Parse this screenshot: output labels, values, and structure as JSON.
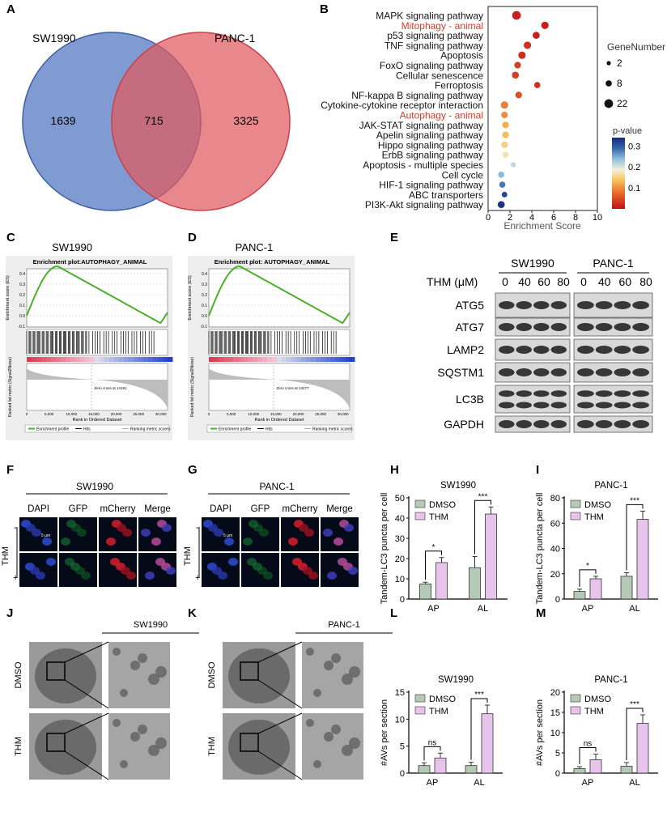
{
  "panels": {
    "A": "A",
    "B": "B",
    "C": "C",
    "D": "D",
    "E": "E",
    "F": "F",
    "G": "G",
    "H": "H",
    "I": "I",
    "J": "J",
    "K": "K",
    "L": "L",
    "M": "M"
  },
  "venn": {
    "left_label": "SW1990",
    "right_label": "PANC-1",
    "left_only": "1639",
    "overlap": "715",
    "right_only": "3325",
    "left_color": "#5b7fc4",
    "right_color": "#e05a60"
  },
  "gsea": [
    {
      "cell": "SW1990",
      "plot_title": "Enrichment plot:AUTOPHAGY_ANIMAL",
      "ylabel": "Enrichment score (ES)",
      "ylabel2": "Ranked list metric (Signal2Noise)",
      "xlabel": "Rank in Ordered Dataset",
      "yticks": [
        "0.4",
        "0.3",
        "0.2",
        "0.1",
        "0.0",
        "-0.1"
      ],
      "xticks": [
        "0",
        "5,000",
        "10,000",
        "15,000",
        "20,000",
        "25,000",
        "30,000"
      ],
      "zero_cross": "Zero cross at 14191",
      "legend": [
        "Enrichment profile",
        "Hits",
        "Ranking metric scores"
      ]
    },
    {
      "cell": "PANC-1",
      "plot_title": "Enrichment plot: AUTOPHAGY_ANIMAL",
      "ylabel": "Enrichment score (ES)",
      "ylabel2": "Ranked list metric (Signal2Noise)",
      "xlabel": "Rank in Ordered Dataset",
      "yticks": [
        "0.4",
        "0.3",
        "0.2",
        "0.1",
        "0.0",
        "-0.1"
      ],
      "xticks": [
        "0",
        "5,000",
        "10,000",
        "15,000",
        "20,000",
        "25,000",
        "30,000"
      ],
      "zero_cross": "Zero cross at 13277",
      "legend": [
        "Enrichment profile",
        "Hits",
        "Ranking metric scores"
      ]
    }
  ],
  "western": {
    "cells": [
      "SW1990",
      "PANC-1"
    ],
    "treatment_label": "THM (μM)",
    "doses": [
      "0",
      "40",
      "60",
      "80"
    ],
    "proteins": [
      "ATG5",
      "ATG7",
      "LAMP2",
      "SQSTM1",
      "LC3B",
      "GAPDH"
    ]
  },
  "if_panels": [
    {
      "cell": "SW1990",
      "channels": [
        "DAPI",
        "GFP",
        "mCherry",
        "Merge"
      ],
      "thm_label": "THM",
      "minus": "-",
      "plus": "+",
      "scale": "5 μm"
    },
    {
      "cell": "PANC-1",
      "channels": [
        "DAPI",
        "GFP",
        "mCherry",
        "Merge"
      ],
      "thm_label": "THM",
      "minus": "-",
      "plus": "+",
      "scale": "5 μm"
    }
  ],
  "tem_panels": [
    {
      "cell": "SW1990",
      "rows": [
        "DMSO",
        "THM"
      ]
    },
    {
      "cell": "PANC-1",
      "rows": [
        "DMSO",
        "THM"
      ]
    }
  ],
  "chart_data": [
    {
      "panel": "B",
      "type": "scatter",
      "categories": [
        "MAPK signaling pathway",
        "Mitophagy - animal",
        "p53 signaling pathway",
        "TNF signaling pathway",
        "Apoptosis",
        "FoxO signaling pathway",
        "Cellular senescence",
        "Ferroptosis",
        "NF-kappa B signaling pathway",
        "Cytokine-cytokine receptor interaction",
        "Autophagy - animal",
        "JAK-STAT signaling pathway",
        "Apelin signaling pathway",
        "Hippo signaling pathway",
        "ErbB signaling pathway",
        "Apoptosis - multiple species",
        "Cell cycle",
        "HIF-1 signaling pathway",
        "ABC transporters",
        "PI3K-Akt signaling pathway"
      ],
      "highlight": [
        "Mitophagy - animal",
        "Autophagy - animal"
      ],
      "highlight_color": "#d63a2c",
      "enrichment_score": [
        2.6,
        5.2,
        4.4,
        3.6,
        3.1,
        2.7,
        2.5,
        4.5,
        2.8,
        1.5,
        1.5,
        1.6,
        1.6,
        1.5,
        1.6,
        2.3,
        1.2,
        1.3,
        1.5,
        1.2
      ],
      "gene_number": [
        22,
        14,
        12,
        14,
        14,
        10,
        12,
        8,
        10,
        14,
        10,
        10,
        10,
        10,
        8,
        4,
        8,
        8,
        6,
        12
      ],
      "p_value": [
        0.01,
        0.01,
        0.01,
        0.02,
        0.02,
        0.03,
        0.03,
        0.02,
        0.04,
        0.07,
        0.08,
        0.1,
        0.11,
        0.13,
        0.15,
        0.2,
        0.23,
        0.27,
        0.31,
        0.33
      ],
      "xlabel": "Enrichment Score",
      "xlim": [
        0,
        10
      ],
      "xticks": [
        "0",
        "2",
        "4",
        "6",
        "8",
        "10"
      ],
      "size_legend_title": "GeneNumber",
      "size_legend": [
        "2",
        "8",
        "22"
      ],
      "color_legend_title": "p-value",
      "color_legend_ticks": [
        "0.3",
        "0.2",
        "0.1"
      ],
      "colorscale": [
        "#c0101a",
        "#e8692b",
        "#f7c35a",
        "#f4f0dc",
        "#8fbfdc",
        "#2f62a8",
        "#1a2a78"
      ]
    },
    {
      "panel": "H",
      "type": "bar",
      "title": "SW1990",
      "ylabel": "Tandem-LC3 puncta per cell",
      "categories": [
        "AP",
        "AL"
      ],
      "series": [
        {
          "name": "DMSO",
          "values": [
            7.5,
            15.5
          ],
          "errors": [
            0.8,
            5.5
          ]
        },
        {
          "name": "THM",
          "values": [
            18,
            42
          ],
          "errors": [
            2.5,
            3.5
          ]
        }
      ],
      "ylim": [
        0,
        50
      ],
      "yticks": [
        "0",
        "10",
        "20",
        "30",
        "40",
        "50"
      ],
      "significance": [
        "*",
        "***"
      ]
    },
    {
      "panel": "I",
      "type": "bar",
      "title": "PANC-1",
      "ylabel": "Tandem-LC3 puncta per cell",
      "categories": [
        "AP",
        "AL"
      ],
      "series": [
        {
          "name": "DMSO",
          "values": [
            6,
            18
          ],
          "errors": [
            1.8,
            2.8
          ]
        },
        {
          "name": "THM",
          "values": [
            16,
            63
          ],
          "errors": [
            2,
            6.5
          ]
        }
      ],
      "ylim": [
        0,
        80
      ],
      "yticks": [
        "0",
        "20",
        "40",
        "60",
        "80"
      ],
      "significance": [
        "*",
        "***"
      ]
    },
    {
      "panel": "L",
      "type": "bar",
      "title": "SW1990",
      "ylabel": "#AVs per section",
      "categories": [
        "AP",
        "AL"
      ],
      "series": [
        {
          "name": "DMSO",
          "values": [
            1.4,
            1.4
          ],
          "errors": [
            0.5,
            0.6
          ]
        },
        {
          "name": "THM",
          "values": [
            2.8,
            11
          ],
          "errors": [
            0.9,
            1.6
          ]
        }
      ],
      "ylim": [
        0,
        15
      ],
      "yticks": [
        "0",
        "5",
        "10",
        "15"
      ],
      "significance": [
        "ns",
        "***"
      ]
    },
    {
      "panel": "M",
      "type": "bar",
      "title": "PANC-1",
      "ylabel": "#AVs per section",
      "categories": [
        "AP",
        "AL"
      ],
      "series": [
        {
          "name": "DMSO",
          "values": [
            1.1,
            1.7
          ],
          "errors": [
            0.5,
            0.9
          ]
        },
        {
          "name": "THM",
          "values": [
            3.3,
            12.3
          ],
          "errors": [
            1.4,
            2.1
          ]
        }
      ],
      "ylim": [
        0,
        20
      ],
      "yticks": [
        "0",
        "5",
        "10",
        "15",
        "20"
      ],
      "significance": [
        "ns",
        "***"
      ]
    }
  ],
  "colors": {
    "dmso": "#b5c9b7",
    "thm": "#e8c3ec",
    "axis": "#222222"
  }
}
